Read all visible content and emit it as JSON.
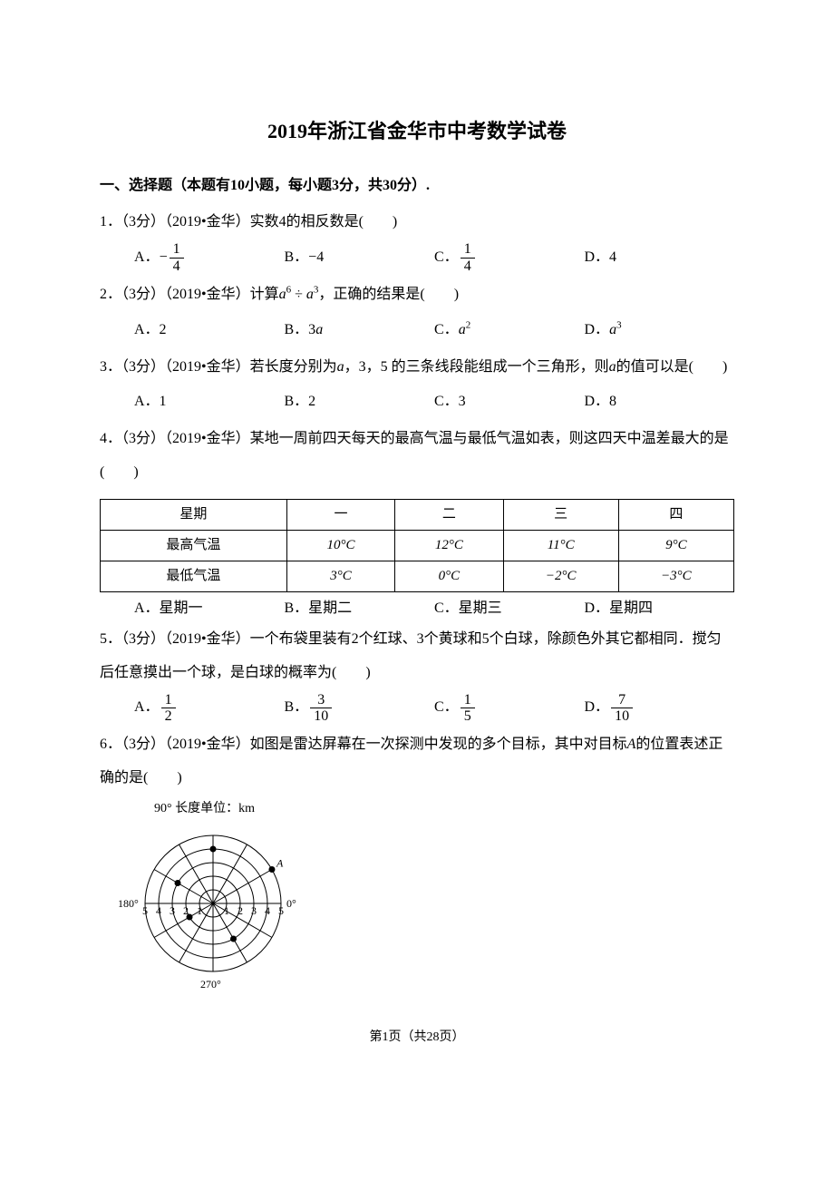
{
  "title": "2019年浙江省金华市中考数学试卷",
  "section1": "一、选择题（本题有10小题，每小题3分，共30分）.",
  "q1": {
    "text": "1．（3分）（2019•金华）实数4的相反数是(　　)",
    "optA": "A．",
    "optA_frac_num": "1",
    "optA_frac_den": "4",
    "optB": "B．−4",
    "optC": "C．",
    "optC_frac_num": "1",
    "optC_frac_den": "4",
    "optD": "D．4"
  },
  "q2": {
    "text_pre": "2．（3分）（2019•金华）计算",
    "text_mid": "÷",
    "text_post": "，正确的结果是(　　)",
    "optA": "A．2",
    "optB": "B．3",
    "optC": "C．",
    "optD": "D．"
  },
  "q3": {
    "text_pre": "3．（3分）（2019•金华）若长度分别为",
    "text_mid": "，3，5 的三条线段能组成一个三角形，则",
    "text_post": "的值可以是(　　)",
    "optA": "A．1",
    "optB": "B．2",
    "optC": "C．3",
    "optD": "D．8"
  },
  "q4": {
    "text": "4．（3分）（2019•金华）某地一周前四天每天的最高气温与最低气温如表，则这四天中温差最大的是(　　)",
    "table": {
      "headers": [
        "星期",
        "一",
        "二",
        "三",
        "四"
      ],
      "row1": [
        "最高气温",
        "10°C",
        "12°C",
        "11°C",
        "9°C"
      ],
      "row2": [
        "最低气温",
        "3°C",
        "0°C",
        "−2°C",
        "−3°C"
      ]
    },
    "optA": "A．星期一",
    "optB": "B．星期二",
    "optC": "C．星期三",
    "optD": "D．星期四"
  },
  "q5": {
    "text": "5．（3分）（2019•金华）一个布袋里装有2个红球、3个黄球和5个白球，除颜色外其它都相同．搅匀后任意摸出一个球，是白球的概率为(　　)",
    "optA": "A．",
    "optA_num": "1",
    "optA_den": "2",
    "optB": "B．",
    "optB_num": "3",
    "optB_den": "10",
    "optC": "C．",
    "optC_num": "1",
    "optC_den": "5",
    "optD": "D．",
    "optD_num": "7",
    "optD_den": "10"
  },
  "q6": {
    "text_pre": "6．（3分）（2019•金华）如图是雷达屏幕在一次探测中发现的多个目标，其中对目标",
    "text_post": "的位置表述正确的是(　　)",
    "radar_label": "90° 长度单位：km",
    "deg0": "0°",
    "deg180": "180°",
    "deg270": "270°",
    "rings": [
      "1",
      "2",
      "3",
      "4",
      "5"
    ]
  },
  "footer": "第1页（共28页）",
  "chart_style": {
    "radar": {
      "type": "radar",
      "background_color": "#ffffff",
      "grid_color": "#000000",
      "ring_count": 5,
      "spoke_count": 12,
      "axis_labels_deg": [
        0,
        90,
        180,
        270
      ],
      "ring_labels": [
        1,
        2,
        3,
        4,
        5
      ],
      "label_fontsize": 12,
      "line_width": 1,
      "points": [
        {
          "label": "A",
          "r": 5,
          "angle_deg": 30,
          "color": "#000000"
        },
        {
          "label": "",
          "r": 4,
          "angle_deg": 90,
          "color": "#000000"
        },
        {
          "label": "",
          "r": 2,
          "angle_deg": 210,
          "color": "#000000"
        },
        {
          "label": "",
          "r": 3,
          "angle_deg": 300,
          "color": "#000000"
        },
        {
          "label": "",
          "r": 3,
          "angle_deg": 150,
          "color": "#000000"
        }
      ]
    }
  }
}
